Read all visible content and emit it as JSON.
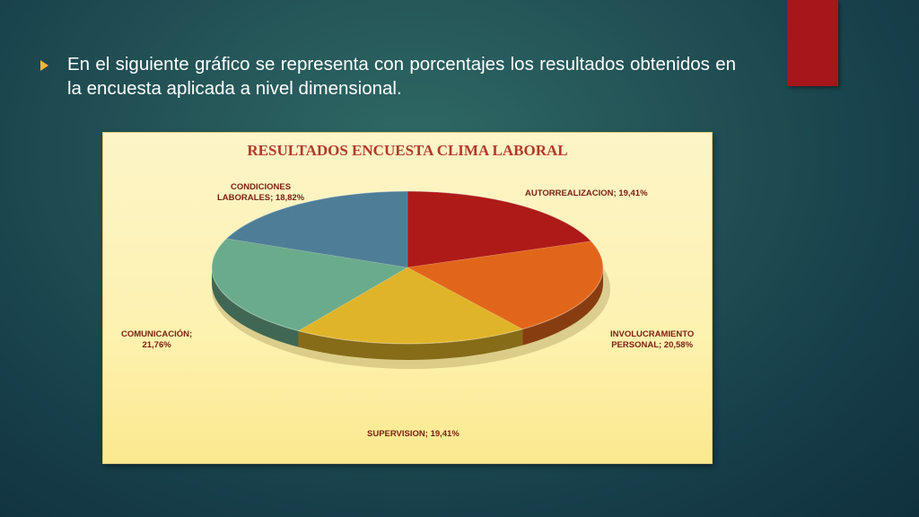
{
  "slide": {
    "bullet_text": "En el siguiente gráfico se representa con porcentajes los resultados obtenidos en la encuesta aplicada a nivel dimensional.",
    "accent_color": "#a6161a"
  },
  "chart_data": {
    "type": "pie",
    "title": "RESULTADOS ENCUESTA CLIMA LABORAL",
    "style": "3d",
    "slices": [
      {
        "name": "AUTORREALIZACION",
        "value": 19.41,
        "label_line1": "AUTORREALIZACION; 19,41%",
        "label_line2": "",
        "color": "#ae1a17"
      },
      {
        "name": "INVOLUCRAMIENTO PERSONAL",
        "value": 20.58,
        "label_line1": "INVOLUCRAMIENTO",
        "label_line2": "PERSONAL; 20,58%",
        "color": "#e2661a"
      },
      {
        "name": "SUPERVISION",
        "value": 19.41,
        "label_line1": "SUPERVISION; 19,41%",
        "label_line2": "",
        "color": "#e0b428"
      },
      {
        "name": "COMUNICACIÓN",
        "value": 21.76,
        "label_line1": "COMUNICACIÓN;",
        "label_line2": "21,76%",
        "color": "#6aab8b"
      },
      {
        "name": "CONDICIONES LABORALES",
        "value": 18.82,
        "label_line1": "CONDICIONES",
        "label_line2": "LABORALES; 18,82%",
        "color": "#4e7e97"
      }
    ]
  }
}
